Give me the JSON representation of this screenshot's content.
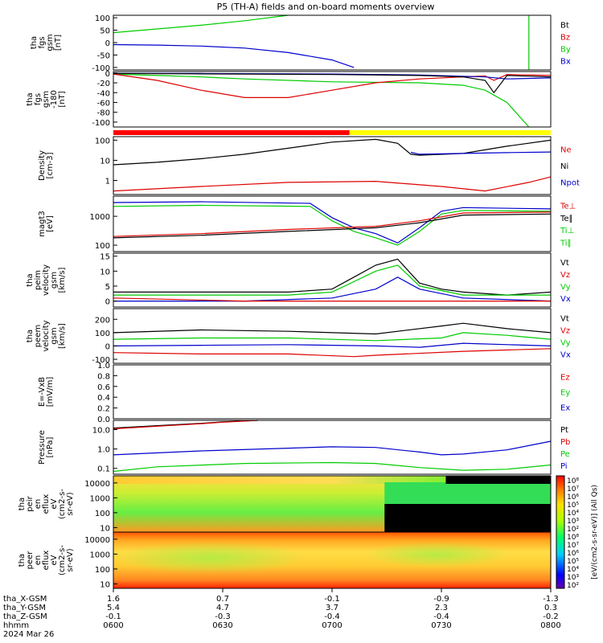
{
  "title": "P5 (TH-A) fields and on-board moments overview",
  "chart_data": [
    {
      "id": "fgs_mag",
      "type": "line",
      "ylabel": [
        "tha",
        "fgs",
        "gsm",
        "[nT]"
      ],
      "yscale": "linear",
      "ylim": [
        -110,
        110
      ],
      "yticks": [
        "100",
        "50",
        "0",
        "-50",
        "-100"
      ],
      "legend": [
        {
          "name": "Bt",
          "color": "#000000"
        },
        {
          "name": "Bz",
          "color": "#dd0000"
        },
        {
          "name": "By",
          "color": "#00cc00"
        },
        {
          "name": "Bx",
          "color": "#0000cc"
        }
      ],
      "series": [
        {
          "name": "By",
          "color": "#00cc00",
          "x": [
            0,
            0.1,
            0.2,
            0.3,
            0.4
          ],
          "y": [
            40,
            55,
            70,
            88,
            112
          ]
        },
        {
          "name": "Bx",
          "color": "#0000cc",
          "x": [
            0,
            0.1,
            0.2,
            0.3,
            0.4,
            0.5,
            0.55
          ],
          "y": [
            -8,
            -10,
            -14,
            -22,
            -40,
            -70,
            -100
          ]
        },
        {
          "name": "By",
          "color": "#00cc00",
          "x": [
            0.95,
            0.95
          ],
          "y": [
            -110,
            110
          ]
        }
      ]
    },
    {
      "id": "fgs_sm",
      "type": "line",
      "ylabel": [
        "tha",
        "fgs",
        "gsm",
        "-180",
        "[nT]"
      ],
      "yscale": "linear",
      "ylim": [
        -110,
        3
      ],
      "yticks": [
        "0",
        "-20",
        "-40",
        "-60",
        "-80",
        "-100"
      ],
      "legend": [],
      "series": [
        {
          "name": "",
          "color": "#00cc00",
          "x": [
            0,
            0.1,
            0.2,
            0.3,
            0.5,
            0.7,
            0.8,
            0.85,
            0.9,
            0.95
          ],
          "y": [
            -2,
            -5,
            -8,
            -12,
            -18,
            -20,
            -25,
            -35,
            -60,
            -110
          ]
        },
        {
          "name": "",
          "color": "#dd0000",
          "x": [
            0,
            0.1,
            0.2,
            0.3,
            0.4,
            0.5,
            0.6,
            0.7,
            0.8,
            0.85,
            0.87,
            0.9,
            1.0
          ],
          "y": [
            -2,
            -15,
            -35,
            -50,
            -50,
            -35,
            -20,
            -12,
            -8,
            -6,
            -15,
            -3,
            -5
          ]
        },
        {
          "name": "",
          "color": "#0000cc",
          "x": [
            0,
            0.2,
            0.5,
            0.7,
            0.85,
            0.9,
            1.0
          ],
          "y": [
            -1,
            -1,
            -2,
            -4,
            -8,
            -12,
            -10
          ]
        },
        {
          "name": "",
          "color": "#000000",
          "x": [
            0,
            0.3,
            0.5,
            0.7,
            0.8,
            0.85,
            0.87,
            0.9,
            1.0
          ],
          "y": [
            -1,
            -2,
            -3,
            -5,
            -8,
            -15,
            -40,
            -5,
            -8
          ]
        }
      ]
    },
    {
      "id": "density",
      "type": "line",
      "ylabel": [
        "Density",
        "[cm-3]"
      ],
      "yscale": "log",
      "ylim": [
        0.2,
        150
      ],
      "yticks": [
        "100",
        "10",
        "1"
      ],
      "legend": [
        {
          "name": "Ne",
          "color": "#dd0000"
        },
        {
          "name": "Ni",
          "color": "#000000"
        },
        {
          "name": "Npot",
          "color": "#0000cc"
        }
      ],
      "series": [
        {
          "name": "Ni",
          "color": "#000000",
          "x": [
            0,
            0.1,
            0.2,
            0.3,
            0.4,
            0.5,
            0.6,
            0.65,
            0.68,
            0.7,
            0.8,
            0.9,
            1.0
          ],
          "y": [
            6,
            8,
            12,
            20,
            40,
            80,
            110,
            70,
            20,
            18,
            22,
            50,
            100
          ]
        },
        {
          "name": "Npot",
          "color": "#0000cc",
          "x": [
            0.68,
            0.7,
            0.8,
            0.9,
            1.0
          ],
          "y": [
            25,
            20,
            22,
            24,
            26
          ]
        },
        {
          "name": "Ne",
          "color": "#dd0000",
          "x": [
            0,
            0.2,
            0.4,
            0.6,
            0.75,
            0.85,
            0.95,
            1.0
          ],
          "y": [
            0.3,
            0.5,
            0.8,
            0.9,
            0.5,
            0.3,
            0.8,
            1.5
          ]
        }
      ]
    },
    {
      "id": "temperature",
      "type": "line",
      "ylabel": [
        "magt3",
        "[eV]"
      ],
      "yscale": "log",
      "ylim": [
        60,
        5000
      ],
      "yticks": [
        "1000",
        "100"
      ],
      "legend": [
        {
          "name": "Te⊥",
          "color": "#dd0000"
        },
        {
          "name": "Te∥",
          "color": "#000000"
        },
        {
          "name": "Ti⊥",
          "color": "#00cc00"
        },
        {
          "name": "Ti∥",
          "color": "#00cc00"
        }
      ],
      "series": [
        {
          "name": "Ti⊥",
          "color": "#0000cc",
          "x": [
            0,
            0.2,
            0.45,
            0.5,
            0.55,
            0.6,
            0.65,
            0.7,
            0.75,
            0.8,
            1.0
          ],
          "y": [
            3000,
            3200,
            2800,
            900,
            400,
            250,
            120,
            400,
            1500,
            2000,
            1800
          ]
        },
        {
          "name": "Ti∥",
          "color": "#00cc00",
          "x": [
            0,
            0.2,
            0.45,
            0.5,
            0.55,
            0.6,
            0.65,
            0.7,
            0.75,
            0.8,
            1.0
          ],
          "y": [
            2200,
            2400,
            2200,
            700,
            300,
            180,
            100,
            300,
            1200,
            1600,
            1500
          ]
        },
        {
          "name": "Te∥",
          "color": "#000000",
          "x": [
            0,
            0.2,
            0.4,
            0.6,
            0.7,
            0.8,
            1.0
          ],
          "y": [
            180,
            220,
            300,
            400,
            600,
            1100,
            1200
          ]
        },
        {
          "name": "Te⊥",
          "color": "#dd0000",
          "x": [
            0,
            0.2,
            0.4,
            0.6,
            0.7,
            0.8,
            1.0
          ],
          "y": [
            200,
            250,
            350,
            450,
            700,
            1300,
            1400
          ]
        }
      ]
    },
    {
      "id": "peim_vel",
      "type": "line",
      "ylabel": [
        "tha",
        "peim",
        "velocity",
        "gsm",
        "[km/s]"
      ],
      "yscale": "linear",
      "ylim": [
        -2,
        16
      ],
      "yticks": [
        "15",
        "10",
        "5",
        "0"
      ],
      "legend": [
        {
          "name": "Vt",
          "color": "#000000"
        },
        {
          "name": "Vz",
          "color": "#dd0000"
        },
        {
          "name": "Vy",
          "color": "#00cc00"
        },
        {
          "name": "Vx",
          "color": "#0000cc"
        }
      ],
      "series": [
        {
          "name": "Vt",
          "color": "#000000",
          "x": [
            0,
            0.2,
            0.4,
            0.5,
            0.55,
            0.6,
            0.65,
            0.7,
            0.75,
            0.8,
            0.9,
            1.0
          ],
          "y": [
            3,
            3,
            3,
            4,
            8,
            12,
            14,
            6,
            4,
            3,
            2,
            3
          ]
        },
        {
          "name": "Vy",
          "color": "#00cc00",
          "x": [
            0,
            0.2,
            0.4,
            0.5,
            0.6,
            0.65,
            0.7,
            0.8,
            1.0
          ],
          "y": [
            2,
            2,
            2,
            3,
            10,
            12,
            5,
            2,
            2
          ]
        },
        {
          "name": "Vx",
          "color": "#0000cc",
          "x": [
            0,
            0.3,
            0.5,
            0.6,
            0.65,
            0.7,
            0.8,
            1.0
          ],
          "y": [
            0,
            0,
            1,
            4,
            8,
            4,
            1,
            0
          ]
        },
        {
          "name": "Vz",
          "color": "#dd0000",
          "x": [
            0,
            0.3,
            0.5,
            0.6,
            0.7,
            0.8,
            1.0
          ],
          "y": [
            1,
            0,
            0,
            0,
            0,
            0,
            0
          ]
        }
      ]
    },
    {
      "id": "peem_vel",
      "type": "line",
      "ylabel": [
        "tha",
        "peem",
        "velocity",
        "gsm",
        "[km/s]"
      ],
      "yscale": "linear",
      "ylim": [
        -130,
        280
      ],
      "yticks": [
        "200",
        "100",
        "0",
        "-100"
      ],
      "legend": [
        {
          "name": "Vt",
          "color": "#000000"
        },
        {
          "name": "Vz",
          "color": "#dd0000"
        },
        {
          "name": "Vy",
          "color": "#00cc00"
        },
        {
          "name": "Vx",
          "color": "#0000cc"
        }
      ],
      "series": [
        {
          "name": "Vt",
          "color": "#000000",
          "x": [
            0,
            0.2,
            0.4,
            0.6,
            0.75,
            0.8,
            0.9,
            1.0
          ],
          "y": [
            100,
            120,
            110,
            90,
            150,
            170,
            130,
            100
          ]
        },
        {
          "name": "Vy",
          "color": "#00cc00",
          "x": [
            0,
            0.2,
            0.4,
            0.6,
            0.75,
            0.8,
            0.9,
            1.0
          ],
          "y": [
            50,
            60,
            60,
            40,
            60,
            100,
            80,
            50
          ]
        },
        {
          "name": "Vx",
          "color": "#0000cc",
          "x": [
            0,
            0.2,
            0.4,
            0.6,
            0.7,
            0.8,
            1.0
          ],
          "y": [
            0,
            5,
            10,
            0,
            -10,
            20,
            0
          ]
        },
        {
          "name": "Vz",
          "color": "#dd0000",
          "x": [
            0,
            0.2,
            0.4,
            0.55,
            0.6,
            0.8,
            1.0
          ],
          "y": [
            -50,
            -60,
            -60,
            -80,
            -70,
            -40,
            -20
          ]
        }
      ]
    },
    {
      "id": "efield",
      "type": "line",
      "ylabel": [
        "E=-VxB",
        "[mV/m]"
      ],
      "yscale": "linear",
      "ylim": [
        0,
        1
      ],
      "yticks": [
        "1.0",
        "0.8",
        "0.6",
        "0.4",
        "0.2",
        "0.0"
      ],
      "legend": [
        {
          "name": "Ez",
          "color": "#dd0000"
        },
        {
          "name": "Ey",
          "color": "#00cc00"
        },
        {
          "name": "Ex",
          "color": "#0000cc"
        }
      ],
      "series": []
    },
    {
      "id": "pressure",
      "type": "line",
      "ylabel": [
        "Pressure",
        "[nPa]"
      ],
      "yscale": "log",
      "ylim": [
        0.05,
        30
      ],
      "yticks": [
        "10.0",
        "1.0",
        "0.1"
      ],
      "legend": [
        {
          "name": "Pt",
          "color": "#000000"
        },
        {
          "name": "Pb",
          "color": "#dd0000"
        },
        {
          "name": "Pe",
          "color": "#00cc00"
        },
        {
          "name": "Pi",
          "color": "#0000cc"
        }
      ],
      "series": [
        {
          "name": "Pt",
          "color": "#000000",
          "x": [
            0,
            0.1,
            0.2,
            0.25,
            0.33
          ],
          "y": [
            12,
            16,
            21,
            25,
            32
          ]
        },
        {
          "name": "Pb",
          "color": "#dd0000",
          "x": [
            0,
            0.1,
            0.2,
            0.25,
            0.33
          ],
          "y": [
            11,
            15,
            20,
            24,
            31
          ]
        },
        {
          "name": "Pi",
          "color": "#0000cc",
          "x": [
            0,
            0.2,
            0.4,
            0.5,
            0.6,
            0.7,
            0.75,
            0.8,
            0.9,
            1.0
          ],
          "y": [
            0.5,
            0.8,
            1.1,
            1.3,
            1.2,
            0.7,
            0.5,
            0.55,
            0.9,
            2.5
          ]
        },
        {
          "name": "Pe",
          "color": "#00cc00",
          "x": [
            0,
            0.1,
            0.3,
            0.5,
            0.6,
            0.7,
            0.8,
            0.9,
            1.0
          ],
          "y": [
            0.07,
            0.12,
            0.18,
            0.2,
            0.18,
            0.11,
            0.08,
            0.09,
            0.15
          ]
        }
      ]
    },
    {
      "id": "peir_spec",
      "type": "heatmap",
      "ylabel": [
        "tha",
        "peir",
        "en",
        "eflux",
        "eV",
        "(cm2-s-",
        "sr-eV)"
      ],
      "yscale": "log",
      "ylim": [
        5,
        30000
      ],
      "yticks": [
        "10000",
        "1000",
        "100",
        "10"
      ]
    },
    {
      "id": "peer_spec",
      "type": "heatmap",
      "ylabel": [
        "tha",
        "peer",
        "en",
        "eflux",
        "eV",
        "(cm2-s-",
        "sr-eV)"
      ],
      "yscale": "log",
      "ylim": [
        5,
        30000
      ],
      "yticks": [
        "10000",
        "1000",
        "100",
        "10"
      ]
    }
  ],
  "colorbar": {
    "label": "[eV/(cm2-s-sr-eV)] (All Qs)",
    "ticks_top": [
      "10⁸",
      "10⁷",
      "10⁶",
      "10⁵",
      "10⁴",
      "10³",
      "10²"
    ],
    "ticks_bottom": [
      "10⁸",
      "10⁷",
      "10⁶",
      "10⁵",
      "10⁴",
      "10³",
      "10²"
    ]
  },
  "bars": {
    "colors": [
      "#ff0000",
      "#ffff00"
    ],
    "split": 0.54
  },
  "xaxis": {
    "rows": [
      {
        "label": "tha_X-GSM",
        "values": [
          "1.6",
          "0.7",
          "-0.1",
          "-0.9",
          "-1.3"
        ]
      },
      {
        "label": "tha_Y-GSM",
        "values": [
          "5.4",
          "4.7",
          "3.7",
          "2.3",
          "0.3"
        ]
      },
      {
        "label": "tha_Z-GSM",
        "values": [
          "-0.1",
          "-0.3",
          "-0.4",
          "-0.4",
          "-0.2"
        ]
      },
      {
        "label": "hhmm",
        "values": [
          "0600",
          "0630",
          "0700",
          "0730",
          "0800"
        ]
      }
    ],
    "date": "2024 Mar 26"
  }
}
